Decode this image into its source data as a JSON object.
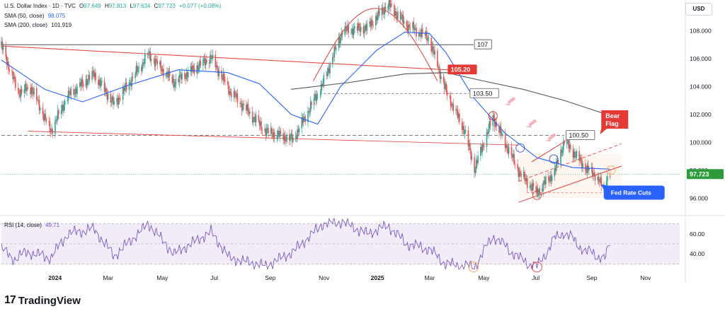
{
  "header": {
    "symbol": "U.S. Dollar Index · 1D · TVC",
    "ohlc": [
      {
        "k": "O",
        "v": "97.649"
      },
      {
        "k": "H",
        "v": "97.813"
      },
      {
        "k": "L",
        "v": "97.634"
      },
      {
        "k": "C",
        "v": "97.723"
      }
    ],
    "change": "+0.077 (+0.08%)",
    "sma50_label": "SMA (50, close)",
    "sma50_value": "98.075",
    "sma200_label": "SMA (200, close)",
    "sma200_value": "101.919",
    "currency": "USD"
  },
  "rsi_header": {
    "label": "RSI (14, close)",
    "value": "49.71"
  },
  "brand": {
    "name": "TradingView",
    "logo_glyph": "17"
  },
  "colors": {
    "up": "#26a69a",
    "down": "#ef5350",
    "sma50": "#2962ff",
    "sma200": "#555555",
    "rsi": "#7e57c2",
    "rsi_band": "#ede7f6",
    "annotation_red": "#e53935",
    "last_price_bg": "#2e9b3b",
    "fed_label_bg": "#2962ff",
    "highlight": "#f4a742"
  },
  "annotations": {
    "level_107": "107",
    "level_105_20": "105.20",
    "level_103_50": "103.50",
    "level_100_50": "100.50",
    "bear_flag": [
      "Bear",
      "Flag"
    ],
    "fed_rate_cuts": "Fed Rate Cuts",
    "last_price": "97.723"
  },
  "chart_data": [
    {
      "type": "candlestick",
      "title": "U.S. Dollar Index · 1D · TVC",
      "ylim": [
        95.0,
        110.0
      ],
      "y_ticks": [
        "96.000",
        "98.000",
        "100.000",
        "102.000",
        "104.000",
        "106.000",
        "108.000"
      ],
      "y_tick_values": [
        96,
        98,
        100,
        102,
        104,
        106,
        108
      ],
      "x_ticks": [
        "2024",
        "Mar",
        "May",
        "Jul",
        "Sep",
        "Nov",
        "2025",
        "Mar",
        "May",
        "Jul",
        "Sep",
        "Nov"
      ],
      "x_tick_dates": [
        "2024-01-01",
        "2024-03-01",
        "2024-05-01",
        "2024-07-01",
        "2024-09-01",
        "2024-11-01",
        "2025-01-01",
        "2025-03-01",
        "2025-05-01",
        "2025-07-01",
        "2025-09-01",
        "2025-11-01"
      ],
      "x_range": [
        "2023-11-01",
        "2025-12-10"
      ],
      "price_path": [
        [
          "2023-11-01",
          106.9
        ],
        [
          "2023-11-20",
          103.6
        ],
        [
          "2023-12-05",
          103.9
        ],
        [
          "2023-12-27",
          100.8
        ],
        [
          "2024-01-15",
          103.3
        ],
        [
          "2024-02-14",
          104.9
        ],
        [
          "2024-03-08",
          102.7
        ],
        [
          "2024-04-16",
          106.3
        ],
        [
          "2024-05-15",
          104.3
        ],
        [
          "2024-06-26",
          106.1
        ],
        [
          "2024-07-17",
          103.7
        ],
        [
          "2024-08-27",
          100.8
        ],
        [
          "2024-09-27",
          100.2
        ],
        [
          "2024-10-31",
          104.2
        ],
        [
          "2024-11-22",
          108.0
        ],
        [
          "2024-12-20",
          108.2
        ],
        [
          "2025-01-13",
          109.9
        ],
        [
          "2025-02-03",
          108.4
        ],
        [
          "2025-02-28",
          107.5
        ],
        [
          "2025-03-20",
          103.6
        ],
        [
          "2025-04-10",
          100.8
        ],
        [
          "2025-04-21",
          98.1
        ],
        [
          "2025-05-12",
          101.8
        ],
        [
          "2025-06-12",
          97.7
        ],
        [
          "2025-07-01",
          96.4
        ],
        [
          "2025-07-21",
          97.9
        ],
        [
          "2025-08-01",
          100.1
        ],
        [
          "2025-08-26",
          98.1
        ],
        [
          "2025-09-05",
          97.7
        ],
        [
          "2025-09-16",
          96.5
        ],
        [
          "2025-09-19",
          97.6
        ],
        [
          "2025-09-22",
          97.72
        ]
      ],
      "sma50_path": [
        [
          "2023-11-01",
          105.9
        ],
        [
          "2023-12-20",
          103.8
        ],
        [
          "2024-02-01",
          102.9
        ],
        [
          "2024-03-20",
          104.0
        ],
        [
          "2024-05-20",
          105.2
        ],
        [
          "2024-07-15",
          105.0
        ],
        [
          "2024-08-20",
          104.2
        ],
        [
          "2024-09-25",
          102.0
        ],
        [
          "2024-10-25",
          101.3
        ],
        [
          "2024-11-20",
          104.0
        ],
        [
          "2024-12-31",
          106.6
        ],
        [
          "2025-02-01",
          107.9
        ],
        [
          "2025-03-01",
          107.8
        ],
        [
          "2025-03-20",
          106.4
        ],
        [
          "2025-04-20",
          103.2
        ],
        [
          "2025-05-25",
          100.7
        ],
        [
          "2025-07-01",
          98.9
        ],
        [
          "2025-08-10",
          98.2
        ],
        [
          "2025-09-22",
          98.075
        ]
      ],
      "sma200_path": [
        [
          "2024-09-25",
          103.8
        ],
        [
          "2024-12-01",
          104.3
        ],
        [
          "2025-02-01",
          104.9
        ],
        [
          "2025-03-20",
          105.0
        ],
        [
          "2025-05-01",
          104.4
        ],
        [
          "2025-06-15",
          103.8
        ],
        [
          "2025-08-01",
          103.0
        ],
        [
          "2025-09-22",
          101.919
        ]
      ],
      "last_price": 97.723,
      "sma50": 98.075,
      "sma200": 101.919
    },
    {
      "type": "line",
      "title": "RSI (14, close)",
      "ylim": [
        24,
        76
      ],
      "y_ticks": [
        "40.00",
        "60.00"
      ],
      "y_tick_values": [
        40,
        60
      ],
      "band": [
        30,
        70
      ],
      "midline": 50,
      "rsi_path": [
        [
          "2023-11-01",
          45
        ],
        [
          "2023-11-15",
          35
        ],
        [
          "2023-12-01",
          42
        ],
        [
          "2023-12-27",
          36
        ],
        [
          "2024-01-15",
          60
        ],
        [
          "2024-02-14",
          65
        ],
        [
          "2024-03-08",
          38
        ],
        [
          "2024-04-16",
          70
        ],
        [
          "2024-05-15",
          40
        ],
        [
          "2024-06-26",
          62
        ],
        [
          "2024-07-17",
          36
        ],
        [
          "2024-08-27",
          28
        ],
        [
          "2024-09-27",
          42
        ],
        [
          "2024-10-31",
          70
        ],
        [
          "2024-11-22",
          72
        ],
        [
          "2024-12-20",
          60
        ],
        [
          "2025-01-13",
          68
        ],
        [
          "2025-02-03",
          50
        ],
        [
          "2025-02-28",
          45
        ],
        [
          "2025-03-20",
          30
        ],
        [
          "2025-04-10",
          28
        ],
        [
          "2025-04-21",
          27
        ],
        [
          "2025-05-12",
          58
        ],
        [
          "2025-06-12",
          35
        ],
        [
          "2025-07-01",
          27
        ],
        [
          "2025-07-21",
          55
        ],
        [
          "2025-08-01",
          62
        ],
        [
          "2025-08-26",
          42
        ],
        [
          "2025-09-05",
          40
        ],
        [
          "2025-09-16",
          35
        ],
        [
          "2025-09-22",
          49.71
        ]
      ],
      "last_value": 49.71
    }
  ]
}
